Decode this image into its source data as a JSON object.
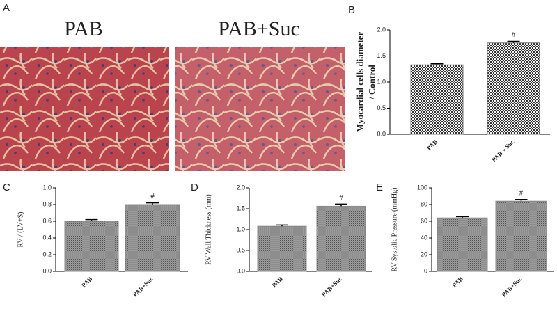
{
  "panel_a": {
    "label": "A",
    "images": [
      {
        "caption": "PAB"
      },
      {
        "caption": "PAB+Suc"
      }
    ]
  },
  "chart_data": [
    {
      "type": "bar",
      "label": "B",
      "ylabel": [
        "Myocardial cells diameter",
        "/ Control"
      ],
      "categories": [
        "PAB",
        "PAB + Suc"
      ],
      "values": [
        1.33,
        1.75
      ],
      "errors": [
        0.02,
        0.03
      ],
      "value_annotations": [
        null,
        "#"
      ],
      "color": "#777777",
      "fill_pattern": "checker",
      "ylim": [
        0,
        2.0
      ],
      "yticks": [
        {
          "value": 0,
          "label": "0.0"
        },
        {
          "value": 0.5,
          "label": "0.5"
        },
        {
          "value": 1,
          "label": "1.0"
        },
        {
          "value": 1.5,
          "label": "1.5"
        },
        {
          "value": 2,
          "label": "2.0"
        }
      ]
    },
    {
      "type": "bar",
      "label": "C",
      "ylabel": [
        "RV / (LV+S)"
      ],
      "categories": [
        "PAB",
        "PAB+Suc"
      ],
      "values": [
        0.6,
        0.8
      ],
      "errors": [
        0.02,
        0.02
      ],
      "value_annotations": [
        null,
        "#"
      ],
      "color": "#8a8a8a",
      "fill_pattern": "hatch",
      "ylim": [
        0,
        1.0
      ],
      "yticks": [
        {
          "value": 0,
          "label": "0.0"
        },
        {
          "value": 0.2,
          "label": "0.2"
        },
        {
          "value": 0.4,
          "label": "0.4"
        },
        {
          "value": 0.6,
          "label": "0.6"
        },
        {
          "value": 0.8,
          "label": "0.8"
        },
        {
          "value": 1,
          "label": "1.0"
        }
      ]
    },
    {
      "type": "bar",
      "label": "D",
      "ylabel": [
        "RV Wall Thickness (mm)"
      ],
      "categories": [
        "PAB",
        "PAB+Suc"
      ],
      "values": [
        1.08,
        1.56
      ],
      "errors": [
        0.03,
        0.05
      ],
      "value_annotations": [
        null,
        "#"
      ],
      "color": "#8a8a8a",
      "fill_pattern": "hatch",
      "ylim": [
        0,
        2.0
      ],
      "yticks": [
        {
          "value": 0,
          "label": "0.0"
        },
        {
          "value": 0.5,
          "label": "0.5"
        },
        {
          "value": 1,
          "label": "1.0"
        },
        {
          "value": 1.5,
          "label": "1.5"
        },
        {
          "value": 2,
          "label": "2.0"
        }
      ]
    },
    {
      "type": "bar",
      "label": "E",
      "ylabel": [
        "RV Systolic Pressure (mmHg)"
      ],
      "categories": [
        "PAB",
        "PAB+Suc"
      ],
      "values": [
        64,
        84
      ],
      "errors": [
        1.5,
        2
      ],
      "value_annotations": [
        null,
        "#"
      ],
      "color": "#8a8a8a",
      "fill_pattern": "hatch",
      "ylim": [
        0,
        100
      ],
      "yticks": [
        0,
        20,
        40,
        60,
        80,
        100
      ]
    }
  ]
}
